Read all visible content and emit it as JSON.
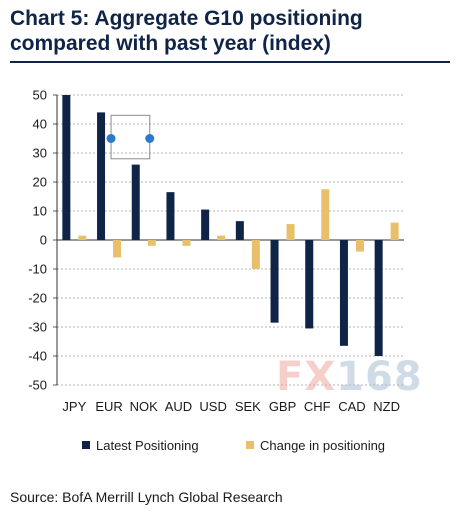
{
  "title": "Chart 5: Aggregate G10 positioning compared with past year (index)",
  "source": "Source: BofA Merrill Lynch Global Research",
  "watermark": {
    "fx": "FX",
    "num": "168"
  },
  "colors": {
    "series0": "#0f2447",
    "series1": "#e8c06a",
    "grid": "#9a9a9a",
    "selection": "#2a7ac9"
  },
  "chart_data": {
    "type": "bar",
    "title": "Chart 5: Aggregate G10 positioning compared with past year (index)",
    "xlabel": "",
    "ylabel": "",
    "ylim": [
      -50,
      50
    ],
    "yticks": [
      50,
      40,
      30,
      20,
      10,
      0,
      -10,
      -20,
      -30,
      -40,
      -50
    ],
    "grid": true,
    "legend_position": "bottom",
    "categories": [
      "JPY",
      "EUR",
      "NOK",
      "AUD",
      "USD",
      "SEK",
      "GBP",
      "CHF",
      "CAD",
      "NZD"
    ],
    "series": [
      {
        "name": "Latest Positioning",
        "values": [
          50,
          44,
          26,
          16.5,
          10.5,
          6.5,
          -28.5,
          -30.5,
          -36.5,
          -40
        ]
      },
      {
        "name": "Change in positioning",
        "values": [
          1.5,
          -6,
          -2,
          -2,
          1.5,
          -10,
          5.5,
          17.5,
          -4,
          6
        ]
      }
    ]
  }
}
